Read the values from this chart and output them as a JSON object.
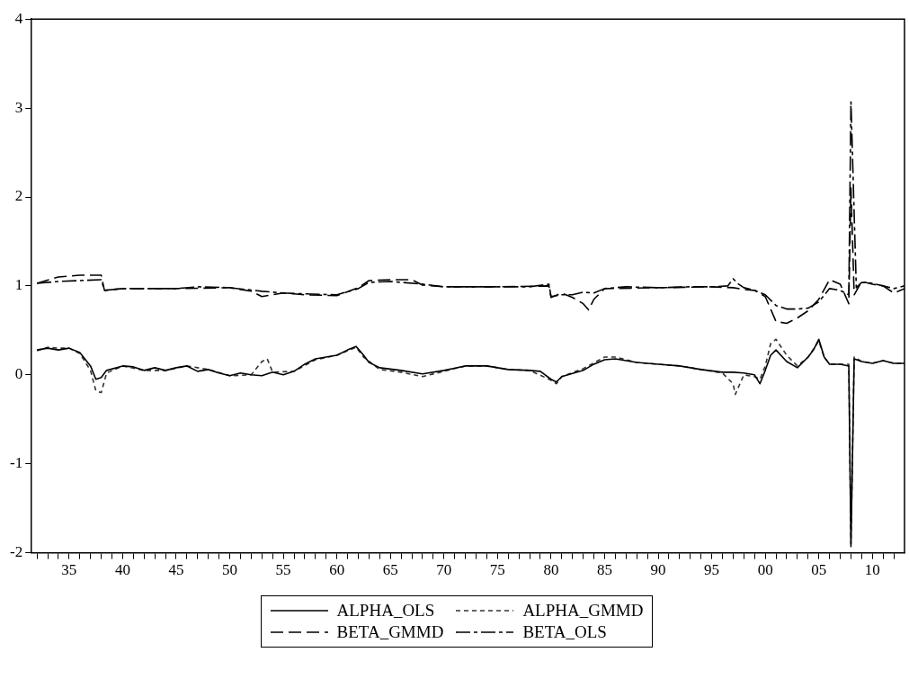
{
  "chart_data": {
    "type": "line",
    "legend": "bottom",
    "grid": false,
    "marker": "none",
    "xlim": [
      1931.5,
      2013
    ],
    "ylim": [
      -2,
      4
    ],
    "yticks": [
      -2,
      -1,
      0,
      1,
      2,
      3,
      4
    ],
    "xticks": [
      {
        "value": 1932,
        "label": null
      },
      {
        "value": 1933,
        "label": null
      },
      {
        "value": 1934,
        "label": null
      },
      {
        "value": 1935,
        "label": "35"
      },
      {
        "value": 1936,
        "label": null
      },
      {
        "value": 1937,
        "label": null
      },
      {
        "value": 1938,
        "label": null
      },
      {
        "value": 1939,
        "label": null
      },
      {
        "value": 1940,
        "label": "40"
      },
      {
        "value": 1941,
        "label": null
      },
      {
        "value": 1942,
        "label": null
      },
      {
        "value": 1943,
        "label": null
      },
      {
        "value": 1944,
        "label": null
      },
      {
        "value": 1945,
        "label": "45"
      },
      {
        "value": 1946,
        "label": null
      },
      {
        "value": 1947,
        "label": null
      },
      {
        "value": 1948,
        "label": null
      },
      {
        "value": 1949,
        "label": null
      },
      {
        "value": 1950,
        "label": "50"
      },
      {
        "value": 1951,
        "label": null
      },
      {
        "value": 1952,
        "label": null
      },
      {
        "value": 1953,
        "label": null
      },
      {
        "value": 1954,
        "label": null
      },
      {
        "value": 1955,
        "label": "55"
      },
      {
        "value": 1956,
        "label": null
      },
      {
        "value": 1957,
        "label": null
      },
      {
        "value": 1958,
        "label": null
      },
      {
        "value": 1959,
        "label": null
      },
      {
        "value": 1960,
        "label": "60"
      },
      {
        "value": 1961,
        "label": null
      },
      {
        "value": 1962,
        "label": null
      },
      {
        "value": 1963,
        "label": null
      },
      {
        "value": 1964,
        "label": null
      },
      {
        "value": 1965,
        "label": "65"
      },
      {
        "value": 1966,
        "label": null
      },
      {
        "value": 1967,
        "label": null
      },
      {
        "value": 1968,
        "label": null
      },
      {
        "value": 1969,
        "label": null
      },
      {
        "value": 1970,
        "label": "70"
      },
      {
        "value": 1971,
        "label": null
      },
      {
        "value": 1972,
        "label": null
      },
      {
        "value": 1973,
        "label": null
      },
      {
        "value": 1974,
        "label": null
      },
      {
        "value": 1975,
        "label": "75"
      },
      {
        "value": 1976,
        "label": null
      },
      {
        "value": 1977,
        "label": null
      },
      {
        "value": 1978,
        "label": null
      },
      {
        "value": 1979,
        "label": null
      },
      {
        "value": 1980,
        "label": "80"
      },
      {
        "value": 1981,
        "label": null
      },
      {
        "value": 1982,
        "label": null
      },
      {
        "value": 1983,
        "label": null
      },
      {
        "value": 1984,
        "label": null
      },
      {
        "value": 1985,
        "label": "85"
      },
      {
        "value": 1986,
        "label": null
      },
      {
        "value": 1987,
        "label": null
      },
      {
        "value": 1988,
        "label": null
      },
      {
        "value": 1989,
        "label": null
      },
      {
        "value": 1990,
        "label": "90"
      },
      {
        "value": 1991,
        "label": null
      },
      {
        "value": 1992,
        "label": null
      },
      {
        "value": 1993,
        "label": null
      },
      {
        "value": 1994,
        "label": null
      },
      {
        "value": 1995,
        "label": "95"
      },
      {
        "value": 1996,
        "label": null
      },
      {
        "value": 1997,
        "label": null
      },
      {
        "value": 1998,
        "label": null
      },
      {
        "value": 1999,
        "label": null
      },
      {
        "value": 2000,
        "label": "00"
      },
      {
        "value": 2001,
        "label": null
      },
      {
        "value": 2002,
        "label": null
      },
      {
        "value": 2003,
        "label": null
      },
      {
        "value": 2004,
        "label": null
      },
      {
        "value": 2005,
        "label": "05"
      },
      {
        "value": 2006,
        "label": null
      },
      {
        "value": 2007,
        "label": null
      },
      {
        "value": 2008,
        "label": null
      },
      {
        "value": 2009,
        "label": null
      },
      {
        "value": 2010,
        "label": "10"
      },
      {
        "value": 2011,
        "label": null
      },
      {
        "value": 2012,
        "label": null
      }
    ],
    "series": [
      {
        "name": "ALPHA_OLS",
        "color": "#000000",
        "line_style": "solid",
        "x": [
          1932,
          1933,
          1934,
          1935,
          1936,
          1937,
          1937.5,
          1938,
          1938.5,
          1940,
          1941,
          1942,
          1943,
          1944,
          1945,
          1946,
          1947,
          1948,
          1949,
          1950,
          1951,
          1952,
          1953,
          1954,
          1955,
          1956,
          1957,
          1958,
          1960,
          1961,
          1961.8,
          1962.5,
          1963,
          1964,
          1966,
          1968,
          1970,
          1972,
          1974,
          1976,
          1978,
          1979,
          1980,
          1980.5,
          1981,
          1983,
          1984,
          1985,
          1986,
          1988,
          1990,
          1992,
          1994,
          1996,
          1997,
          1998,
          1999,
          1999.5,
          2000,
          2000.5,
          2001,
          2002,
          2003,
          2004,
          2004.5,
          2005,
          2005.5,
          2006,
          2007,
          2007.8,
          2008,
          2008.3,
          2009,
          2010,
          2011,
          2012,
          2013
        ],
        "values": [
          0.28,
          0.3,
          0.28,
          0.3,
          0.25,
          0.1,
          -0.05,
          -0.03,
          0.05,
          0.1,
          0.09,
          0.05,
          0.08,
          0.05,
          0.08,
          0.1,
          0.04,
          0.06,
          0.02,
          -0.01,
          0.02,
          0,
          -0.01,
          0.03,
          0,
          0.04,
          0.12,
          0.18,
          0.22,
          0.28,
          0.32,
          0.22,
          0.14,
          0.08,
          0.05,
          0.01,
          0.05,
          0.1,
          0.1,
          0.06,
          0.05,
          0.04,
          -0.05,
          -0.08,
          -0.02,
          0.05,
          0.12,
          0.17,
          0.18,
          0.14,
          0.12,
          0.1,
          0.06,
          0.03,
          0.03,
          0.02,
          0,
          -0.1,
          0.05,
          0.22,
          0.28,
          0.15,
          0.08,
          0.2,
          0.28,
          0.4,
          0.2,
          0.12,
          0.12,
          0.1,
          -1.93,
          0.18,
          0.15,
          0.13,
          0.16,
          0.13,
          0.13
        ]
      },
      {
        "name": "ALPHA_GMMD",
        "color": "#333333",
        "line_style": "dotted",
        "x": [
          1932,
          1933,
          1934,
          1935,
          1936,
          1937,
          1937.5,
          1938,
          1938.5,
          1940,
          1942,
          1944,
          1946,
          1948,
          1950,
          1952,
          1953,
          1953.5,
          1954,
          1956,
          1958,
          1960,
          1961.8,
          1962.5,
          1964,
          1966,
          1968,
          1970,
          1972,
          1974,
          1976,
          1978,
          1980,
          1980.5,
          1981,
          1983,
          1985,
          1986,
          1988,
          1990,
          1992,
          1994,
          1996,
          1997,
          1997.2,
          1998,
          1999,
          1999.5,
          2000,
          2000.5,
          2001,
          2002,
          2003,
          2004,
          2005,
          2005.5,
          2006,
          2007,
          2007.8,
          2008,
          2008.3,
          2009,
          2010,
          2011,
          2012,
          2013
        ],
        "values": [
          0.27,
          0.31,
          0.3,
          0.3,
          0.24,
          0.05,
          -0.18,
          -0.2,
          0.02,
          0.1,
          0.05,
          0.05,
          0.1,
          0.06,
          -0.01,
          0,
          0.15,
          0.18,
          0.03,
          0.04,
          0.17,
          0.22,
          0.31,
          0.2,
          0.06,
          0.03,
          -0.02,
          0.04,
          0.1,
          0.1,
          0.06,
          0.05,
          -0.06,
          -0.1,
          -0.02,
          0.07,
          0.2,
          0.2,
          0.14,
          0.12,
          0.1,
          0.06,
          0.02,
          -0.1,
          -0.22,
          0,
          -0.02,
          -0.05,
          0.1,
          0.35,
          0.4,
          0.22,
          0.1,
          0.2,
          0.38,
          0.2,
          0.12,
          0.12,
          0.12,
          -1.9,
          0.2,
          0.15,
          0.13,
          0.16,
          0.13,
          0.13
        ]
      },
      {
        "name": "BETA_GMMD",
        "color": "#000000",
        "line_style": "dashed",
        "x": [
          1932,
          1934,
          1936,
          1938,
          1938.3,
          1940,
          1945,
          1950,
          1952,
          1953,
          1954,
          1955,
          1957,
          1960,
          1962,
          1963,
          1965,
          1967,
          1968,
          1970,
          1975,
          1979.8,
          1980,
          1981,
          1982,
          1983,
          1983.5,
          1984,
          1985,
          1990,
          1995,
          1997,
          1998,
          1999,
          2000,
          2001,
          2002,
          2003,
          2004,
          2005,
          2006,
          2007,
          2007.8,
          2008,
          2008.3,
          2009,
          2010,
          2011,
          2012,
          2013
        ],
        "values": [
          1.03,
          1.1,
          1.12,
          1.12,
          0.95,
          0.97,
          0.97,
          0.98,
          0.94,
          0.88,
          0.9,
          0.92,
          0.9,
          0.89,
          0.98,
          1.06,
          1.07,
          1.07,
          1.01,
          0.99,
          0.99,
          1,
          0.87,
          0.92,
          0.87,
          0.8,
          0.73,
          0.85,
          0.97,
          0.98,
          0.99,
          0.98,
          0.96,
          0.95,
          0.88,
          0.6,
          0.58,
          0.64,
          0.72,
          0.85,
          1.07,
          1.02,
          0.8,
          2.1,
          0.9,
          1.05,
          1.02,
          1,
          0.92,
          0.97
        ]
      },
      {
        "name": "BETA_OLS",
        "color": "#000000",
        "line_style": "dashdot",
        "x": [
          1932,
          1934,
          1936,
          1938,
          1938.3,
          1940,
          1945,
          1947,
          1950,
          1953,
          1955,
          1957,
          1960,
          1962,
          1963,
          1965,
          1968,
          1970,
          1972,
          1975,
          1978,
          1979.8,
          1980,
          1981,
          1982,
          1983,
          1984,
          1985,
          1987,
          1990,
          1993,
          1995,
          1996.5,
          1997,
          1997.5,
          1998,
          1999,
          2000,
          2001,
          2002,
          2003,
          2004,
          2005,
          2006,
          2007,
          2007.8,
          2008,
          2008.5,
          2009,
          2010,
          2011,
          2012,
          2013
        ],
        "values": [
          1.03,
          1.05,
          1.06,
          1.07,
          0.95,
          0.97,
          0.97,
          0.99,
          0.98,
          0.94,
          0.92,
          0.91,
          0.9,
          0.97,
          1.04,
          1.05,
          1.02,
          0.99,
          0.99,
          0.99,
          0.99,
          1.02,
          0.88,
          0.9,
          0.9,
          0.93,
          0.92,
          0.97,
          0.99,
          0.98,
          0.99,
          0.99,
          1,
          1.08,
          1.02,
          0.98,
          0.95,
          0.9,
          0.78,
          0.74,
          0.74,
          0.75,
          0.82,
          0.97,
          0.95,
          0.9,
          3.07,
          0.98,
          1.04,
          1.03,
          1,
          0.97,
          1
        ]
      }
    ]
  }
}
